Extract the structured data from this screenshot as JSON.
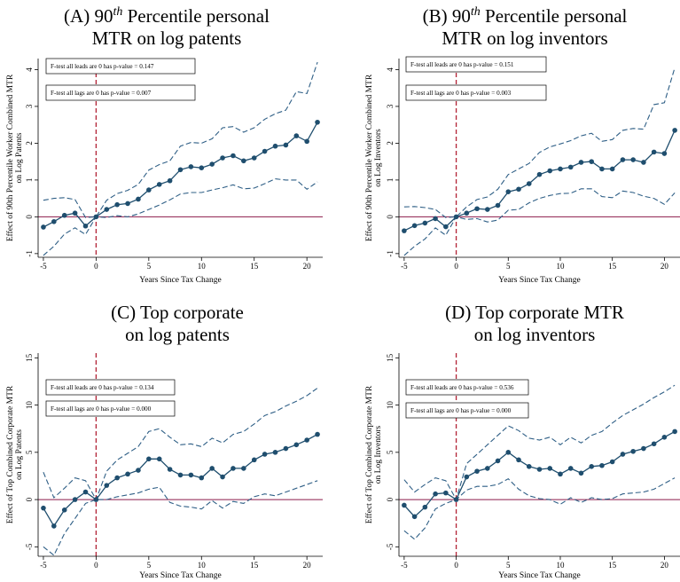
{
  "colors": {
    "series": "#1f4e6e",
    "ci": "#2f5f86",
    "zero_line": "#8b1a4a",
    "event_line": "#b22234",
    "axis": "#000000",
    "note_border": "#000000"
  },
  "panels": [
    {
      "title_lines": [
        {
          "pre": "(A)  90",
          "sup": "th",
          "post": " Percentile personal"
        },
        {
          "pre": "MTR on log patents",
          "sup": "",
          "post": ""
        }
      ],
      "notes": [
        "F-test all leads are 0 has p-value = 0.147",
        "F-test all lags are 0 has p-value = 0.007"
      ],
      "xlabel": "Years Since Tax Change",
      "ylabel_lines": [
        "Effect of 90th Percentile Worker Combined MTR",
        "on Log Patents"
      ],
      "xticks": [
        -5,
        0,
        5,
        10,
        15,
        20
      ],
      "yticks": [
        -1,
        0,
        1,
        2,
        3,
        4
      ]
    },
    {
      "title_lines": [
        {
          "pre": "(B)  90",
          "sup": "th",
          "post": " Percentile personal"
        },
        {
          "pre": "MTR on log inventors",
          "sup": "",
          "post": ""
        }
      ],
      "notes": [
        "F-test all leads are 0 has p-value = 0.151",
        "F-test all lags are 0 has p-value = 0.003"
      ],
      "xlabel": "Years Since Tax Change",
      "ylabel_lines": [
        "Effect of 90th Percentile Worker Combined MTR",
        "on Log Inventors"
      ],
      "xticks": [
        -5,
        0,
        5,
        10,
        15,
        20
      ],
      "yticks": [
        -1,
        0,
        1,
        2,
        3,
        4
      ]
    },
    {
      "title_lines": [
        {
          "pre": "(C)  Top corporate",
          "sup": "",
          "post": ""
        },
        {
          "pre": "on log patents",
          "sup": "",
          "post": ""
        }
      ],
      "notes": [
        "F-test all leads are 0 has p-value = 0.134",
        "F-test all lags are 0 has p-value = 0.000"
      ],
      "xlabel": "Years Since Tax Change",
      "ylabel_lines": [
        "Effect of Top Combined Corporate MTR",
        "on Log Patents"
      ],
      "xticks": [
        -5,
        0,
        5,
        10,
        15,
        20
      ],
      "yticks": [
        -5,
        0,
        5,
        10,
        15
      ]
    },
    {
      "title_lines": [
        {
          "pre": "(D)  Top corporate MTR",
          "sup": "",
          "post": ""
        },
        {
          "pre": "on log inventors",
          "sup": "",
          "post": ""
        }
      ],
      "notes": [
        "F-test all leads are 0 has p-value = 0.536",
        "F-test all lags are 0 has p-value = 0.000"
      ],
      "xlabel": "Years Since Tax Change",
      "ylabel_lines": [
        "Effect of Top Combined Corporate MTR",
        "on Log Inventors"
      ],
      "xticks": [
        -5,
        0,
        5,
        10,
        15,
        20
      ],
      "yticks": [
        -5,
        0,
        5,
        10,
        15
      ]
    }
  ],
  "chart_data": [
    {
      "type": "line",
      "xlim": [
        -5.5,
        21.5
      ],
      "ylim": [
        -1.1,
        4.3
      ],
      "x": [
        -5,
        -4,
        -3,
        -2,
        -1,
        0,
        1,
        2,
        3,
        4,
        5,
        6,
        7,
        8,
        9,
        10,
        11,
        12,
        13,
        14,
        15,
        16,
        17,
        18,
        19,
        20,
        21
      ],
      "series": [
        {
          "role": "estimate",
          "values": [
            -0.28,
            -0.13,
            0.04,
            0.1,
            -0.25,
            0.0,
            0.2,
            0.33,
            0.36,
            0.48,
            0.73,
            0.88,
            0.98,
            1.28,
            1.36,
            1.33,
            1.43,
            1.6,
            1.66,
            1.52,
            1.6,
            1.78,
            1.92,
            1.95,
            2.2,
            2.05,
            2.57
          ]
        },
        {
          "role": "ci_upper",
          "values": [
            0.45,
            0.5,
            0.52,
            0.47,
            -0.02,
            0.0,
            0.45,
            0.63,
            0.72,
            0.88,
            1.27,
            1.42,
            1.52,
            1.92,
            2.02,
            2.0,
            2.12,
            2.42,
            2.45,
            2.3,
            2.42,
            2.65,
            2.8,
            2.9,
            3.4,
            3.35,
            4.2
          ]
        },
        {
          "role": "ci_lower",
          "values": [
            -1.05,
            -0.8,
            -0.47,
            -0.3,
            -0.48,
            0.0,
            -0.02,
            0.03,
            0.0,
            0.08,
            0.2,
            0.32,
            0.46,
            0.62,
            0.66,
            0.66,
            0.73,
            0.79,
            0.87,
            0.76,
            0.78,
            0.9,
            1.03,
            1.0,
            1.0,
            0.75,
            0.95
          ]
        }
      ]
    },
    {
      "type": "line",
      "xlim": [
        -5.5,
        21.5
      ],
      "ylim": [
        -1.1,
        4.3
      ],
      "x": [
        -5,
        -4,
        -3,
        -2,
        -1,
        0,
        1,
        2,
        3,
        4,
        5,
        6,
        7,
        8,
        9,
        10,
        11,
        12,
        13,
        14,
        15,
        16,
        17,
        18,
        19,
        20,
        21
      ],
      "series": [
        {
          "role": "estimate",
          "values": [
            -0.38,
            -0.24,
            -0.17,
            -0.05,
            -0.27,
            0.0,
            0.1,
            0.22,
            0.2,
            0.31,
            0.68,
            0.75,
            0.9,
            1.15,
            1.25,
            1.3,
            1.35,
            1.48,
            1.5,
            1.3,
            1.3,
            1.55,
            1.55,
            1.48,
            1.76,
            1.72,
            2.35
          ]
        },
        {
          "role": "ci_upper",
          "values": [
            0.27,
            0.28,
            0.25,
            0.2,
            -0.02,
            0.0,
            0.27,
            0.47,
            0.54,
            0.75,
            1.15,
            1.3,
            1.45,
            1.75,
            1.9,
            1.98,
            2.07,
            2.2,
            2.27,
            2.05,
            2.1,
            2.35,
            2.4,
            2.38,
            3.05,
            3.1,
            4.05
          ]
        },
        {
          "role": "ci_lower",
          "values": [
            -1.05,
            -0.8,
            -0.6,
            -0.3,
            -0.5,
            0.0,
            -0.07,
            -0.05,
            -0.14,
            -0.09,
            0.18,
            0.2,
            0.38,
            0.5,
            0.58,
            0.63,
            0.64,
            0.76,
            0.76,
            0.55,
            0.52,
            0.7,
            0.66,
            0.56,
            0.5,
            0.34,
            0.65
          ]
        }
      ]
    },
    {
      "type": "line",
      "xlim": [
        -5.5,
        21.5
      ],
      "ylim": [
        -6,
        15.5
      ],
      "x": [
        -5,
        -4,
        -3,
        -2,
        -1,
        0,
        1,
        2,
        3,
        4,
        5,
        6,
        7,
        8,
        9,
        10,
        11,
        12,
        13,
        14,
        15,
        16,
        17,
        18,
        19,
        20,
        21
      ],
      "series": [
        {
          "role": "estimate",
          "values": [
            -0.9,
            -2.8,
            -1.1,
            0.0,
            0.8,
            0.0,
            1.5,
            2.3,
            2.7,
            3.1,
            4.3,
            4.3,
            3.2,
            2.6,
            2.6,
            2.3,
            3.3,
            2.4,
            3.3,
            3.3,
            4.2,
            4.8,
            5.0,
            5.4,
            5.8,
            6.3,
            6.9
          ]
        },
        {
          "role": "ci_upper",
          "values": [
            2.9,
            0.2,
            1.2,
            2.3,
            2.0,
            0.0,
            3.0,
            4.2,
            4.9,
            5.6,
            7.2,
            7.5,
            6.6,
            5.8,
            5.9,
            5.6,
            6.5,
            6.0,
            6.9,
            7.2,
            8.0,
            8.9,
            9.3,
            9.9,
            10.4,
            11.0,
            11.8
          ]
        },
        {
          "role": "ci_lower",
          "values": [
            -5.0,
            -5.9,
            -3.6,
            -2.0,
            -0.4,
            0.0,
            0.0,
            0.3,
            0.5,
            0.7,
            1.1,
            1.3,
            -0.3,
            -0.7,
            -0.8,
            -1.0,
            -0.1,
            -0.9,
            -0.2,
            -0.4,
            0.3,
            0.6,
            0.4,
            0.8,
            1.2,
            1.6,
            2.0
          ]
        }
      ]
    },
    {
      "type": "line",
      "xlim": [
        -5.5,
        21.5
      ],
      "ylim": [
        -6,
        15.5
      ],
      "x": [
        -5,
        -4,
        -3,
        -2,
        -1,
        0,
        1,
        2,
        3,
        4,
        5,
        6,
        7,
        8,
        9,
        10,
        11,
        12,
        13,
        14,
        15,
        16,
        17,
        18,
        19,
        20,
        21
      ],
      "series": [
        {
          "role": "estimate",
          "values": [
            -0.6,
            -1.8,
            -0.8,
            0.6,
            0.7,
            0.0,
            2.4,
            3.0,
            3.3,
            4.1,
            5.0,
            4.2,
            3.5,
            3.2,
            3.3,
            2.7,
            3.3,
            2.8,
            3.5,
            3.6,
            4.0,
            4.8,
            5.1,
            5.4,
            5.9,
            6.6,
            7.2
          ]
        },
        {
          "role": "ci_upper",
          "values": [
            2.1,
            0.8,
            1.6,
            2.3,
            2.0,
            0.0,
            3.8,
            4.8,
            5.8,
            6.8,
            7.8,
            7.3,
            6.5,
            6.3,
            6.6,
            5.8,
            6.6,
            6.0,
            6.8,
            7.2,
            8.1,
            8.9,
            9.5,
            10.1,
            10.8,
            11.4,
            12.1
          ]
        },
        {
          "role": "ci_lower",
          "values": [
            -3.3,
            -4.2,
            -3.0,
            -1.0,
            -0.4,
            0.0,
            1.0,
            1.4,
            1.4,
            1.6,
            2.2,
            1.1,
            0.4,
            0.1,
            0.0,
            -0.5,
            0.2,
            -0.3,
            0.2,
            0.0,
            0.1,
            0.6,
            0.7,
            0.8,
            1.1,
            1.7,
            2.3
          ]
        }
      ]
    }
  ]
}
